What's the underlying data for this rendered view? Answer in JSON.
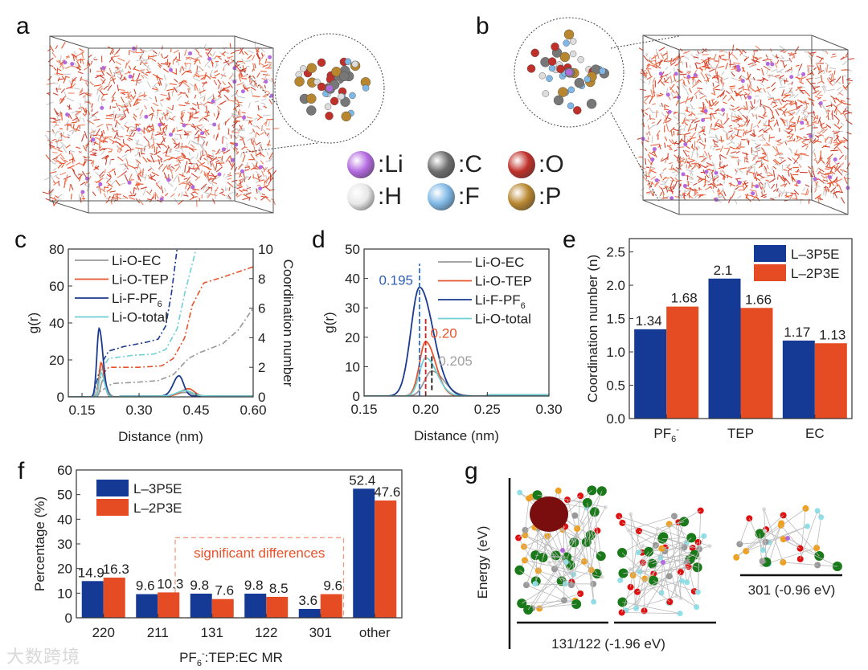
{
  "panels": {
    "a": "a",
    "b": "b",
    "c": "c",
    "d": "d",
    "e": "e",
    "f": "f",
    "g": "g"
  },
  "atom_legend": [
    {
      "label": ":Li",
      "color": "#b36ae0"
    },
    {
      "label": ":C",
      "color": "#6e6e6e"
    },
    {
      "label": ":O",
      "color": "#c0302a"
    },
    {
      "label": ":H",
      "color": "#e8e8e8"
    },
    {
      "label": ":F",
      "color": "#7fb8e6"
    },
    {
      "label": ":P",
      "color": "#b8862f"
    }
  ],
  "colors": {
    "ec": "#999999",
    "tep": "#e8532b",
    "pf6": "#1a3a8f",
    "total": "#6fd0d4",
    "l3p5e": "#153a96",
    "l2p3e": "#e54c24"
  },
  "watermark": "大数跨境",
  "chart_data": [
    {
      "id": "c",
      "type": "line",
      "xlabel": "Distance (nm)",
      "ylabel": "g(r)",
      "y2label": "Coordination number",
      "xlim": [
        0.114,
        0.6
      ],
      "ylim": [
        0,
        80
      ],
      "y2lim": [
        0,
        10
      ],
      "xticks": [
        "0.15",
        "0.30",
        "0.45",
        "0.60"
      ],
      "yticks": [
        "0",
        "20",
        "40",
        "60",
        "80"
      ],
      "y2ticks": [
        "0",
        "2",
        "4",
        "6",
        "8",
        "10"
      ],
      "legend": [
        "Li-O-EC",
        "Li-O-TEP",
        "Li-F-PF",
        "Li-O-total"
      ],
      "legend_sub": "6",
      "series": [
        {
          "name": "Li-O-EC",
          "color_key": "ec",
          "peaks": [
            {
              "r": 0.205,
              "g": 9,
              "wl": 0.006,
              "wr": 0.01
            },
            {
              "r": 0.42,
              "g": 2,
              "wl": 0.02,
              "wr": 0.02
            }
          ]
        },
        {
          "name": "Li-O-TEP",
          "color_key": "tep",
          "peaks": [
            {
              "r": 0.2,
              "g": 18.5,
              "wl": 0.005,
              "wr": 0.008
            },
            {
              "r": 0.43,
              "g": 4,
              "wl": 0.02,
              "wr": 0.015
            }
          ]
        },
        {
          "name": "Li-F-PF6",
          "color_key": "pf6",
          "peaks": [
            {
              "r": 0.195,
              "g": 37,
              "wl": 0.006,
              "wr": 0.01
            },
            {
              "r": 0.405,
              "g": 11,
              "wl": 0.015,
              "wr": 0.012
            }
          ]
        },
        {
          "name": "Li-O-total",
          "color_key": "total",
          "peaks": [
            {
              "r": 0.2,
              "g": 13,
              "wl": 0.005,
              "wr": 0.009
            },
            {
              "r": 0.42,
              "g": 3,
              "wl": 0.02,
              "wr": 0.02
            }
          ]
        }
      ],
      "cn_series": [
        {
          "name": "Li-O-EC",
          "color_key": "ec",
          "points": [
            [
              0.18,
              0
            ],
            [
              0.2,
              0.4
            ],
            [
              0.23,
              0.9
            ],
            [
              0.3,
              1.0
            ],
            [
              0.35,
              1.1
            ],
            [
              0.39,
              1.5
            ],
            [
              0.43,
              2.6
            ],
            [
              0.46,
              3.0
            ],
            [
              0.52,
              3.6
            ],
            [
              0.56,
              4.5
            ],
            [
              0.6,
              6.0
            ]
          ]
        },
        {
          "name": "Li-O-TEP",
          "color_key": "tep",
          "points": [
            [
              0.18,
              0
            ],
            [
              0.2,
              1.4
            ],
            [
              0.22,
              2.0
            ],
            [
              0.3,
              2.0
            ],
            [
              0.36,
              2.1
            ],
            [
              0.39,
              2.6
            ],
            [
              0.42,
              4.0
            ],
            [
              0.44,
              6.2
            ],
            [
              0.47,
              7.7
            ],
            [
              0.52,
              8.1
            ],
            [
              0.6,
              8.8
            ]
          ]
        },
        {
          "name": "Li-F-PF6",
          "color_key": "pf6",
          "points": [
            [
              0.18,
              0.1
            ],
            [
              0.2,
              2.2
            ],
            [
              0.22,
              3.1
            ],
            [
              0.26,
              3.4
            ],
            [
              0.32,
              3.7
            ],
            [
              0.35,
              3.9
            ],
            [
              0.37,
              4.8
            ],
            [
              0.385,
              7.0
            ],
            [
              0.4,
              10
            ]
          ]
        },
        {
          "name": "Li-O-total",
          "color_key": "total",
          "points": [
            [
              0.18,
              0
            ],
            [
              0.2,
              1.8
            ],
            [
              0.22,
              2.6
            ],
            [
              0.28,
              2.8
            ],
            [
              0.34,
              2.9
            ],
            [
              0.37,
              3.2
            ],
            [
              0.4,
              4.6
            ],
            [
              0.42,
              7.0
            ],
            [
              0.45,
              10
            ]
          ]
        }
      ]
    },
    {
      "id": "d",
      "type": "line",
      "xlabel": "Distance (nm)",
      "ylabel": "g(r)",
      "xlim": [
        0.15,
        0.3
      ],
      "ylim": [
        0,
        50
      ],
      "xticks": [
        "0.15",
        "0.20",
        "0.25",
        "0.30"
      ],
      "yticks": [
        "0",
        "10",
        "20",
        "30",
        "40",
        "50"
      ],
      "legend": [
        "Li-O-EC",
        "Li-O-TEP",
        "Li-F-PF",
        "Li-O-total"
      ],
      "legend_sub": "6",
      "series": [
        {
          "name": "Li-O-EC",
          "color_key": "ec",
          "peaks": [
            {
              "r": 0.205,
              "g": 8.5,
              "wl": 0.006,
              "wr": 0.01
            }
          ]
        },
        {
          "name": "Li-O-TEP",
          "color_key": "tep",
          "peaks": [
            {
              "r": 0.2,
              "g": 18.5,
              "wl": 0.005,
              "wr": 0.008
            }
          ]
        },
        {
          "name": "Li-F-PF6",
          "color_key": "pf6",
          "peaks": [
            {
              "r": 0.195,
              "g": 37,
              "wl": 0.007,
              "wr": 0.011
            }
          ]
        },
        {
          "name": "Li-O-total",
          "color_key": "total",
          "peaks": [
            {
              "r": 0.2,
              "g": 13,
              "wl": 0.005,
              "wr": 0.009
            }
          ]
        }
      ],
      "annotations": [
        {
          "text": "0.195",
          "x": 0.195,
          "ymin": 0,
          "ymax": 45,
          "color": "#2f5fb0",
          "lineColor": "#2f6fd0"
        },
        {
          "text": "0.20",
          "x": 0.2,
          "ymin": 0,
          "ymax": 27,
          "color": "#e8532b",
          "lineColor": "#e02020"
        },
        {
          "text": "0.205",
          "x": 0.205,
          "ymin": 2,
          "ymax": 14,
          "color": "#a0a0a0",
          "lineColor": "#111111"
        }
      ]
    },
    {
      "id": "e",
      "type": "bar",
      "ylabel": "Coordination number (n)",
      "ylim": [
        0,
        2.7
      ],
      "yticks": [
        "0.0",
        "0.5",
        "1.0",
        "1.5",
        "2.0",
        "2.5"
      ],
      "categories": [
        "PF",
        "TEP",
        "EC"
      ],
      "category_sub": [
        "6",
        "",
        ""
      ],
      "category_sup": [
        "-",
        "",
        ""
      ],
      "series": [
        {
          "name": "L–3P5E",
          "color_key": "l3p5e",
          "values": [
            1.34,
            2.1,
            1.17
          ],
          "labels": [
            "1.34",
            "2.1",
            "1.17"
          ]
        },
        {
          "name": "L–2P3E",
          "color_key": "l2p3e",
          "values": [
            1.68,
            1.66,
            1.13
          ],
          "labels": [
            "1.68",
            "1.66",
            "1.13"
          ]
        }
      ],
      "legend": "top-right"
    },
    {
      "id": "f",
      "type": "bar",
      "xlabel": "PF",
      "xlabel_sub": "6",
      "xlabel_sup": "-",
      "xlabel_rest": ":TEP:EC MR",
      "ylabel": "Percentage (%)",
      "ylim": [
        0,
        60
      ],
      "yticks": [
        "0",
        "10",
        "20",
        "30",
        "40",
        "50",
        "60"
      ],
      "categories": [
        "220",
        "211",
        "131",
        "122",
        "301",
        "other"
      ],
      "series": [
        {
          "name": "L–3P5E",
          "color_key": "l3p5e",
          "values": [
            14.9,
            9.6,
            9.8,
            9.8,
            3.6,
            52.4
          ],
          "labels": [
            "14.9",
            "9.6",
            "9.8",
            "9.8",
            "3.6",
            "52.4"
          ]
        },
        {
          "name": "L–2P3E",
          "color_key": "l2p3e",
          "values": [
            16.3,
            10.3,
            7.6,
            8.5,
            9.6,
            47.6
          ],
          "labels": [
            "16.3",
            "10.3",
            "7.6",
            "8.5",
            "9.6",
            "47.6"
          ]
        }
      ],
      "annotation": "significant differences",
      "legend": "top-left"
    }
  ],
  "energy_panel": {
    "ylabel": "Energy (eV)",
    "levels": [
      {
        "label": "131/122 (-1.96 eV)",
        "value": -1.96
      },
      {
        "label": "301 (-0.96 eV)",
        "value": -0.96
      }
    ]
  }
}
